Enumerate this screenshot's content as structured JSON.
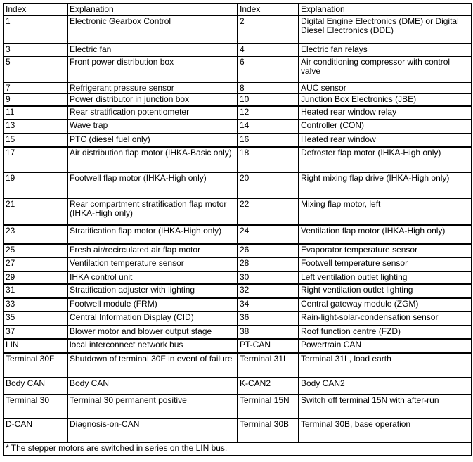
{
  "headers": [
    "Index",
    "Explanation",
    "Index",
    "Explanation"
  ],
  "rows": [
    [
      "1",
      "Electronic Gearbox Control",
      "2",
      "Digital Engine Electronics (DME) or Digital Diesel Electronics (DDE)"
    ],
    [
      "3",
      "Electric fan",
      "4",
      "Electric fan relays"
    ],
    [
      "5",
      "Front power distribution box",
      "6",
      "Air conditioning compressor with control valve"
    ],
    [
      "7",
      "Refrigerant pressure sensor",
      "8",
      "AUC sensor"
    ],
    [
      "9",
      "Power distributor in junction box",
      "10",
      "Junction Box Electronics (JBE)"
    ],
    [
      "11",
      "Rear stratification potentiometer",
      "12",
      "Heated rear window relay"
    ],
    [
      "13",
      "Wave trap",
      "14",
      "Controller (CON)"
    ],
    [
      "15",
      "PTC (diesel fuel only)",
      "16",
      "Heated rear window"
    ],
    [
      "17",
      "Air distribution flap motor (IHKA-Basic only)",
      "18",
      "Defroster flap motor (IHKA-High only)"
    ],
    [
      "19",
      "Footwell flap motor (IHKA-High only)",
      "20",
      "Right mixing flap drive (IHKA-High only)"
    ],
    [
      "21",
      "Rear compartment stratification flap motor (IHKA-High only)",
      "22",
      "Mixing flap motor, left"
    ],
    [
      "23",
      "Stratification flap motor (IHKA-High only)",
      "24",
      "Ventilation flap motor (IHKA-High only)"
    ],
    [
      "25",
      "Fresh air/recirculated air flap motor",
      "26",
      "Evaporator temperature sensor"
    ],
    [
      "27",
      "Ventilation temperature sensor",
      "28",
      "Footwell temperature sensor"
    ],
    [
      "29",
      "IHKA control unit",
      "30",
      "Left ventilation outlet lighting"
    ],
    [
      "31",
      "Stratification adjuster with lighting",
      "32",
      "Right ventilation outlet lighting"
    ],
    [
      "33",
      "Footwell module (FRM)",
      "34",
      "Central gateway module (ZGM)"
    ],
    [
      "35",
      "Central Information Display (CID)",
      "36",
      "Rain-light-solar-condensation sensor"
    ],
    [
      "37",
      "Blower motor and blower output stage",
      "38",
      "Roof function centre (FZD)"
    ],
    [
      "LIN",
      "local interconnect network bus",
      "PT-CAN",
      "Powertrain CAN"
    ],
    [
      "Terminal 30F",
      "Shutdown of terminal 30F in event of failure",
      "Terminal 31L",
      "Terminal 31L, load earth"
    ],
    [
      "Body CAN",
      "Body CAN",
      "K-CAN2",
      "Body CAN2"
    ],
    [
      "Terminal 30",
      "Terminal 30 permanent positive",
      "Terminal 15N",
      "Switch off terminal 15N with after-run"
    ],
    [
      "D-CAN",
      "Diagnosis-on-CAN",
      "Terminal 30B",
      "Terminal 30B, base operation"
    ]
  ],
  "footnote": "* The stepper motors are switched in series on the LIN bus."
}
